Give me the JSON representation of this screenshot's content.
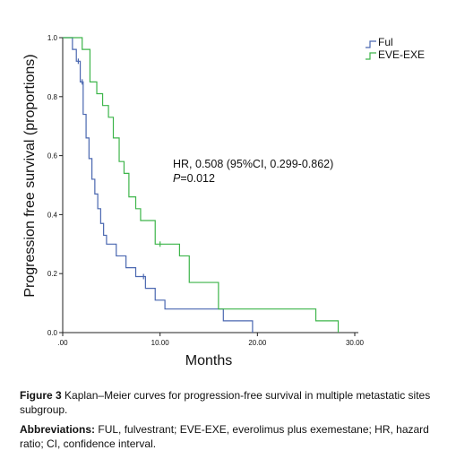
{
  "chart_data": {
    "type": "line",
    "step": true,
    "xlabel": "Months",
    "ylabel": "Progression free survival (proportions)",
    "xlim": [
      0,
      30
    ],
    "ylim": [
      0,
      1
    ],
    "x_ticks": [
      0,
      10,
      20,
      30
    ],
    "x_tick_labels": [
      ".00",
      "10.00",
      "20.00",
      "30.00"
    ],
    "y_ticks": [
      0,
      0.2,
      0.4,
      0.6,
      0.8,
      1.0
    ],
    "y_tick_labels": [
      "0.0",
      "0.2",
      "0.4",
      "0.6",
      "0.8",
      "1.0"
    ],
    "grid": false,
    "legend_position": "top-right",
    "annotation": {
      "line1": "HR, 0.508 (95%CI, 0.299-0.862)",
      "line2_italic": "P",
      "line2_rest": "=0.012"
    },
    "series": [
      {
        "name": "Ful",
        "color": "#4a67b0",
        "x": [
          0,
          1.0,
          1.4,
          1.8,
          2.1,
          2.4,
          2.7,
          3.0,
          3.3,
          3.6,
          3.9,
          4.2,
          4.5,
          5.5,
          6.5,
          7.5,
          8.5,
          9.5,
          10.5,
          12.5,
          16.5,
          19.5
        ],
        "y": [
          1.0,
          0.96,
          0.92,
          0.85,
          0.74,
          0.66,
          0.59,
          0.52,
          0.47,
          0.42,
          0.37,
          0.33,
          0.3,
          0.26,
          0.22,
          0.19,
          0.15,
          0.11,
          0.08,
          0.08,
          0.04,
          0.0
        ],
        "censor_x": [
          1.6,
          2.0,
          8.3
        ],
        "censor_y": [
          0.92,
          0.85,
          0.19
        ]
      },
      {
        "name": "EVE-EXE",
        "color": "#3db54a",
        "x": [
          0,
          2.0,
          2.8,
          3.5,
          4.1,
          4.7,
          5.2,
          5.8,
          6.3,
          6.8,
          7.5,
          8.0,
          9.5,
          12.0,
          13.0,
          16.0,
          26.0,
          28.3
        ],
        "y": [
          1.0,
          0.96,
          0.85,
          0.81,
          0.77,
          0.73,
          0.66,
          0.58,
          0.54,
          0.46,
          0.42,
          0.38,
          0.3,
          0.26,
          0.17,
          0.08,
          0.04,
          0.0
        ],
        "censor_x": [
          10.0
        ],
        "censor_y": [
          0.3
        ]
      }
    ]
  },
  "caption": {
    "figure_label": "Figure 3",
    "figure_text": "Kaplan–Meier curves for progression-free survival in multiple metastatic sites subgroup.",
    "abbrev_label": "Abbreviations:",
    "abbrev_text": "FUL, fulvestrant; EVE-EXE, everolimus plus exemestane; HR, hazard ratio; CI, confidence interval."
  }
}
